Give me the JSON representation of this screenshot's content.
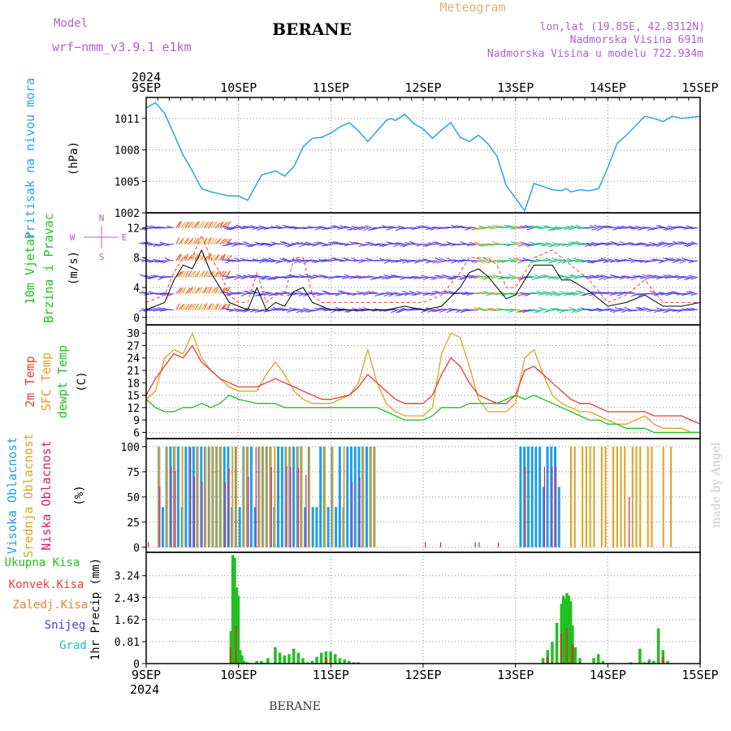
{
  "header": {
    "model_label": "Model",
    "model_name": "wrf−nmm_v3.9.1  e1km",
    "station": "BERANE",
    "meteogram": "Meteogram",
    "lonlat": "lon,lat (19.85E, 42.8312N)",
    "elevation": "Nadmorska Visina 691m",
    "model_elevation": "Nadmorska Visina u modelu 722.934m",
    "footer_station": "BERANE",
    "credit": "made by Angel"
  },
  "colors": {
    "pressure": "#29a3e6",
    "wind_label": "#20c020",
    "temp2m": "#e83a3a",
    "sfc": "#e0a020",
    "dewpt": "#20c020",
    "high": "#1f9de8",
    "mid": "#e0a020",
    "low": "#d81b6a",
    "purple": "#b060d0",
    "orange_label": "#f08030",
    "snow": "#4040e0",
    "hail": "#20c0c0"
  },
  "time_axis": {
    "year": "2024",
    "labels": [
      "9SEP",
      "10SEP",
      "11SEP",
      "12SEP",
      "13SEP",
      "14SEP",
      "15SEP"
    ]
  },
  "chart_data": [
    {
      "id": "pressure",
      "type": "line",
      "ylabel_1": "Pritisak na nivou mora",
      "ylabel_2": "(hPa)",
      "yticks": [
        1002,
        1005,
        1008,
        1011
      ],
      "ylim": [
        1002,
        1013
      ],
      "x": [
        0,
        0.1,
        0.2,
        0.3,
        0.4,
        0.5,
        0.6,
        0.7,
        0.8,
        0.9,
        1.0,
        1.1,
        1.25,
        1.4,
        1.5,
        1.6,
        1.7,
        1.8,
        1.9,
        2.0,
        2.1,
        2.2,
        2.3,
        2.4,
        2.5,
        2.6,
        2.65,
        2.7,
        2.8,
        2.9,
        3.0,
        3.1,
        3.2,
        3.3,
        3.4,
        3.5,
        3.6,
        3.7,
        3.8,
        3.9,
        4.0,
        4.1,
        4.2,
        4.3,
        4.4,
        4.5,
        4.55,
        4.6,
        4.7,
        4.8,
        4.9,
        5.0,
        5.1,
        5.2,
        5.3,
        5.4,
        5.5,
        5.6,
        5.7,
        5.8,
        5.9,
        6.0
      ],
      "y": [
        1012,
        1012.5,
        1011.5,
        1009.5,
        1007.5,
        1006,
        1004.3,
        1004,
        1003.8,
        1003.6,
        1003.6,
        1003.2,
        1005.6,
        1006,
        1005.5,
        1006.4,
        1008.3,
        1009.1,
        1009.2,
        1009.6,
        1010.2,
        1010.6,
        1009.8,
        1008.8,
        1009.8,
        1010.8,
        1011,
        1010.8,
        1011.4,
        1010.5,
        1010,
        1009.1,
        1009.9,
        1010.6,
        1009.2,
        1008.8,
        1009.4,
        1008.6,
        1007.4,
        1004.6,
        1003.4,
        1002.2,
        1004.8,
        1004.5,
        1004.2,
        1004.1,
        1004.3,
        1004,
        1004.2,
        1004.1,
        1004.3,
        1006.3,
        1008.6,
        1009.4,
        1010.3,
        1011.2,
        1011,
        1010.7,
        1011.2,
        1011,
        1011.1,
        1011.2
      ]
    },
    {
      "id": "wind",
      "type": "line",
      "ylabel_1": "10m Vjetar",
      "ylabel_2": "Brzina i Pravac",
      "ylabel_3": "(m/s)",
      "compass": [
        "N",
        "E",
        "S",
        "W"
      ],
      "yticks": [
        0,
        4,
        8,
        12
      ],
      "ylim": [
        -1,
        14
      ],
      "x": [
        0,
        0.2,
        0.3,
        0.4,
        0.5,
        0.6,
        0.7,
        0.8,
        0.9,
        1.0,
        1.1,
        1.2,
        1.3,
        1.4,
        1.5,
        1.6,
        1.7,
        1.8,
        1.9,
        2.0,
        2.2,
        2.4,
        2.6,
        2.8,
        3.0,
        3.2,
        3.4,
        3.5,
        3.6,
        3.7,
        3.8,
        3.9,
        4.0,
        4.2,
        4.4,
        4.5,
        4.6,
        4.8,
        5.0,
        5.2,
        5.4,
        5.6,
        5.8,
        6.0
      ],
      "y": [
        1,
        2,
        5,
        7,
        6.5,
        9,
        6,
        4,
        2,
        1.5,
        1,
        4,
        1,
        2,
        1.5,
        3.5,
        4,
        2,
        1.5,
        1,
        1,
        1,
        1,
        1.5,
        1,
        1.5,
        4,
        6,
        6.5,
        5.5,
        4,
        2.5,
        3,
        7,
        7,
        5,
        5,
        3.5,
        1.5,
        2,
        3,
        1.5,
        1.5,
        2
      ],
      "gust_y": [
        2,
        3,
        6,
        8,
        8,
        11,
        8,
        6,
        3,
        2,
        2,
        6,
        2,
        3,
        3,
        8,
        8,
        3,
        2,
        2,
        2,
        2,
        2,
        2,
        2,
        3,
        6,
        8,
        8,
        8,
        7,
        4,
        4,
        8,
        9,
        8,
        7,
        5,
        2,
        3,
        5,
        2,
        2,
        2
      ]
    },
    {
      "id": "temperature",
      "type": "line",
      "ylabel_1": "2m Temp",
      "ylabel_2": "SFC Temp",
      "ylabel_3": "dewpt Temp",
      "ylabel_4": "(C)",
      "yticks": [
        6,
        9,
        12,
        15,
        18,
        21,
        24,
        27,
        30
      ],
      "ylim": [
        4.5,
        32
      ],
      "x": [
        0,
        0.1,
        0.2,
        0.3,
        0.4,
        0.5,
        0.6,
        0.7,
        0.8,
        0.9,
        1.0,
        1.2,
        1.3,
        1.4,
        1.5,
        1.6,
        1.7,
        1.8,
        1.9,
        2.0,
        2.2,
        2.3,
        2.4,
        2.5,
        2.6,
        2.7,
        2.8,
        2.9,
        3.0,
        3.1,
        3.2,
        3.3,
        3.4,
        3.5,
        3.6,
        3.7,
        3.8,
        3.9,
        4.0,
        4.1,
        4.2,
        4.3,
        4.4,
        4.5,
        4.6,
        4.7,
        4.8,
        4.9,
        5.0,
        5.1,
        5.2,
        5.3,
        5.4,
        5.5,
        5.6,
        5.7,
        5.8,
        5.9,
        6.0
      ],
      "t2m": [
        15,
        19,
        22,
        25,
        24,
        27,
        23,
        21,
        19,
        18,
        17,
        17,
        18,
        19,
        18,
        17,
        16,
        15,
        14,
        14,
        15,
        17,
        20,
        18,
        16,
        14,
        13,
        13,
        13,
        15,
        20,
        24,
        22,
        18,
        15,
        14,
        13,
        13,
        15,
        21,
        22,
        20,
        18,
        16,
        14,
        13,
        13,
        12,
        11,
        11,
        11,
        11,
        11,
        10,
        10,
        10,
        10,
        9,
        8
      ],
      "sfc": [
        14,
        16,
        24,
        26,
        25,
        30,
        24,
        21,
        19,
        17,
        16,
        16,
        20,
        23,
        20,
        16,
        14,
        13,
        13,
        13,
        15,
        18,
        26,
        18,
        13,
        11,
        10,
        10,
        10,
        12,
        25,
        30,
        29,
        22,
        14,
        11,
        11,
        11,
        13,
        24,
        26,
        20,
        15,
        13,
        12,
        11,
        11,
        10,
        9,
        8,
        8,
        9,
        10,
        8,
        7,
        7,
        7,
        6,
        6
      ],
      "dew": [
        14,
        12,
        11,
        11,
        12,
        12,
        13,
        12,
        13,
        15,
        14,
        13,
        13,
        13,
        12,
        12,
        12,
        12,
        12,
        12,
        12,
        12,
        12,
        12,
        11,
        10,
        9,
        9,
        9,
        10,
        12,
        12,
        12,
        13,
        13,
        13,
        13,
        14,
        15,
        14,
        15,
        14,
        13,
        12,
        11,
        10,
        9,
        9,
        8,
        8,
        7,
        7,
        7,
        6,
        6,
        6,
        6,
        6,
        6
      ]
    },
    {
      "id": "cloud",
      "type": "bar",
      "ylabel_1": "Visoka Oblacnost",
      "ylabel_2": "Srednja Oblacnost",
      "ylabel_3": "Niska Oblacnost",
      "ylabel_4": "(%)",
      "yticks": [
        0,
        25,
        50,
        75,
        100
      ],
      "ylim": [
        -5,
        108
      ]
    },
    {
      "id": "precip",
      "type": "bar",
      "ylabel_1": "1hr Precip (mm)",
      "legend": [
        "Ukupna Kisa",
        "Konvek.Kisa",
        "Zaledj.Kisa",
        "Snijeg",
        "Grad"
      ],
      "yticks": [
        0,
        0.81,
        1.62,
        2.43,
        3.24
      ],
      "ylim": [
        0,
        4.1
      ],
      "x": [
        0.92,
        0.94,
        0.96,
        0.98,
        1.0,
        1.02,
        1.04,
        1.06,
        1.08,
        1.1,
        1.2,
        1.25,
        1.32,
        1.4,
        1.45,
        1.5,
        1.55,
        1.6,
        1.65,
        1.7,
        1.75,
        1.8,
        1.85,
        1.9,
        1.95,
        2.0,
        2.05,
        2.1,
        2.15,
        2.2,
        2.25,
        2.3,
        4.3,
        4.35,
        4.4,
        4.45,
        4.5,
        4.52,
        4.54,
        4.56,
        4.58,
        4.6,
        4.62,
        4.65,
        4.7,
        4.85,
        4.9,
        4.95,
        5.25,
        5.35,
        5.4,
        5.45,
        5.5,
        5.55,
        5.6,
        5.65
      ],
      "values": [
        1.2,
        4.0,
        3.9,
        2.8,
        2.5,
        0.5,
        0.3,
        0.1,
        0.05,
        0.05,
        0.1,
        0.1,
        0.2,
        0.6,
        0.4,
        0.3,
        0.35,
        0.55,
        0.4,
        0.2,
        0.05,
        0.1,
        0.25,
        0.4,
        0.45,
        0.45,
        0.35,
        0.2,
        0.15,
        0.1,
        0.05,
        0.05,
        0.2,
        0.5,
        0.8,
        1.5,
        2.2,
        2.5,
        2.4,
        2.6,
        2.5,
        2.3,
        1.4,
        0.6,
        0.2,
        0.2,
        0.35,
        0.1,
        0.05,
        0.55,
        0.05,
        0.15,
        0.1,
        1.3,
        0.5,
        0.1
      ]
    }
  ]
}
